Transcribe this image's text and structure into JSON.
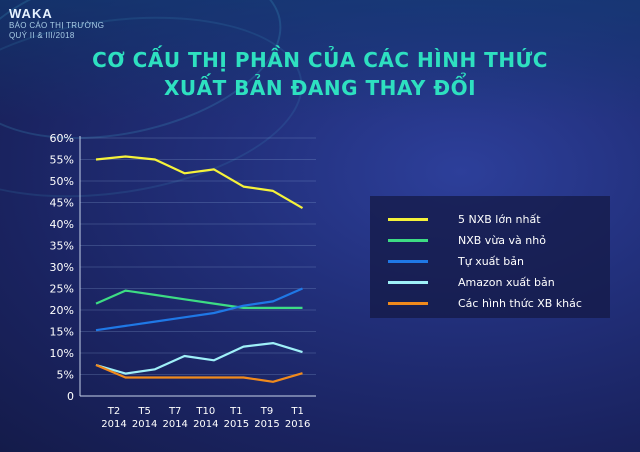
{
  "header": {
    "brand": "WAKA",
    "subtitle_line1": "BÁO CÁO THỊ TRƯỜNG",
    "subtitle_line2": "QUÝ II & III/2018"
  },
  "title_line1": "CƠ CẤU THỊ PHẦN CỦA CÁC HÌNH THỨC",
  "title_line2": "XUẤT BẢN ĐANG THAY ĐỔI",
  "chart_data": {
    "type": "line",
    "x_labels": [
      [
        "T2",
        "2014"
      ],
      [
        "T5",
        "2014"
      ],
      [
        "T7",
        "2014"
      ],
      [
        "T10",
        "2014"
      ],
      [
        "T1",
        "2015"
      ],
      [
        "T9",
        "2015"
      ],
      [
        "T1",
        "2016"
      ]
    ],
    "x": [
      0,
      1,
      2,
      3,
      4,
      5,
      6,
      7,
      8
    ],
    "y_ticks": [
      "0",
      "5%",
      "10%",
      "15%",
      "20%",
      "25%",
      "30%",
      "35%",
      "40%",
      "45%",
      "50%",
      "55%",
      "60%"
    ],
    "ylim": [
      0,
      60
    ],
    "grid": true,
    "legend_position": "right",
    "series": [
      {
        "name": "5 NXB lớn nhất",
        "color": "#f5f23a",
        "values": [
          55,
          55.7,
          55,
          51.8,
          52.7,
          48.7,
          47.7,
          43.7,
          null
        ]
      },
      {
        "name": "NXB vừa và nhỏ",
        "color": "#3ddc84",
        "values": [
          21.5,
          24.5,
          23.5,
          22.5,
          21.5,
          20.5,
          20.5,
          20.5,
          null
        ]
      },
      {
        "name": "Tự xuất bản",
        "color": "#1f78e6",
        "values": [
          15.3,
          16.3,
          17.3,
          18.3,
          19.3,
          21,
          22,
          25,
          null
        ]
      },
      {
        "name": "Amazon xuất bản",
        "color": "#9ff0f8",
        "values": [
          7.2,
          5.2,
          6.2,
          9.3,
          8.3,
          11.5,
          12.3,
          10.2,
          null
        ]
      },
      {
        "name": "Các hình thức XB khác",
        "color": "#f08a1c",
        "values": [
          7.2,
          4.3,
          4.3,
          4.3,
          4.3,
          4.3,
          3.3,
          5.3,
          null
        ]
      }
    ]
  }
}
